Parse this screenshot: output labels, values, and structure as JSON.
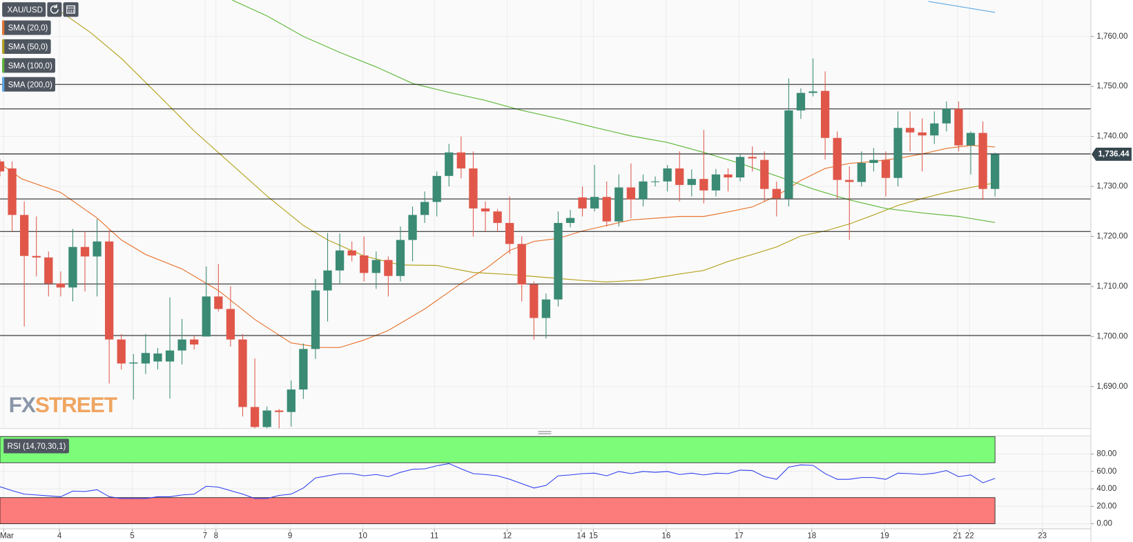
{
  "chart_data": [
    {
      "type": "candlestick",
      "name": "XAU/USD",
      "up_color": "#3a8a74",
      "down_color": "#e0574a",
      "open": [
        1735,
        1733.6,
        1724.3,
        1716.1,
        1715.8,
        1710.6,
        1709.8,
        1717.9,
        1716,
        1719,
        1699.4,
        1694.6,
        1694.6,
        1695,
        1695,
        1697.2,
        1699.4,
        1700,
        1708,
        1705.5,
        1699.4,
        1685.9,
        1681.9,
        1685.2,
        1684.9,
        1689.4,
        1697.5,
        1709.2,
        1713.2,
        1717.2,
        1716.2,
        1712.7,
        1715.3,
        1712.1,
        1719.3,
        1724.3,
        1726.9,
        1732.1,
        1736.8,
        1733.6,
        1725.6,
        1725,
        1722.7,
        1718.5,
        1710.4,
        1703.7,
        1707.4,
        1722.7,
        1727.8,
        1725.6,
        1727.9,
        1723,
        1729.8,
        1727.4,
        1731,
        1731,
        1733.6,
        1730.3,
        1731.5,
        1729.2,
        1732.4,
        1731.8,
        1735.9,
        1735.3,
        1729.5,
        1727.6,
        1745.2,
        1748.7,
        1749.1,
        1739.7,
        1731.3,
        1730.9,
        1734.7,
        1735.3,
        1731.7,
        1741.7,
        1740.8,
        1740.2,
        1742.6,
        1745.5,
        1738.2,
        1740.7,
        1729.5
      ],
      "high": [
        1735.5,
        1735,
        1727,
        1724,
        1717,
        1713,
        1721.5,
        1721,
        1723.5,
        1721.3,
        1700.5,
        1696.5,
        1700.5,
        1697.7,
        1707.8,
        1703.5,
        1700.2,
        1714,
        1714.5,
        1710,
        1700.5,
        1695.6,
        1686,
        1685.5,
        1691.2,
        1698.6,
        1711.5,
        1720.7,
        1720.6,
        1719,
        1720,
        1717,
        1716,
        1722,
        1726,
        1729,
        1733,
        1738.5,
        1740,
        1737,
        1727,
        1725.5,
        1728,
        1720,
        1711,
        1708.6,
        1725,
        1725.3,
        1730,
        1734.3,
        1731,
        1732.4,
        1734.6,
        1732.4,
        1732,
        1734.3,
        1737,
        1733.4,
        1741.3,
        1733.5,
        1733.6,
        1736.5,
        1738,
        1737,
        1731,
        1751.6,
        1749.6,
        1755.6,
        1753,
        1741,
        1734,
        1737,
        1737.7,
        1737,
        1745,
        1745,
        1743.6,
        1745,
        1747,
        1747,
        1741,
        1743,
        1736.8
      ],
      "low": [
        1732,
        1721,
        1702,
        1712,
        1708,
        1708,
        1707,
        1709,
        1708,
        1690.6,
        1693.4,
        1687.4,
        1692.5,
        1693.4,
        1687.6,
        1694.4,
        1697.4,
        1700,
        1705,
        1698,
        1684,
        1681.5,
        1681.5,
        1681.5,
        1682,
        1687.5,
        1695.5,
        1703,
        1710.6,
        1715,
        1711,
        1709.5,
        1708,
        1711,
        1715,
        1722.7,
        1724,
        1730,
        1731.6,
        1720,
        1721,
        1721,
        1716.5,
        1707,
        1699.4,
        1699.6,
        1706,
        1721.8,
        1724,
        1725,
        1722,
        1722,
        1723.6,
        1726,
        1730,
        1729,
        1727,
        1728,
        1726.6,
        1728,
        1729,
        1731,
        1733,
        1727,
        1724,
        1726,
        1743.5,
        1748,
        1735.4,
        1727.6,
        1719.3,
        1730,
        1733,
        1728,
        1730,
        1737,
        1733,
        1738.5,
        1741,
        1737,
        1732.4,
        1727.3,
        1728
      ],
      "close": [
        1733,
        1724.3,
        1716.1,
        1715.8,
        1710.6,
        1709.8,
        1717.9,
        1716,
        1719,
        1699.4,
        1694.6,
        1694.8,
        1696.7,
        1696.6,
        1697.2,
        1699.4,
        1698.4,
        1708,
        1705.5,
        1699.4,
        1685.9,
        1681.9,
        1685.2,
        1684.9,
        1689.4,
        1697.5,
        1709.2,
        1713.2,
        1717.2,
        1716.2,
        1712.7,
        1715.3,
        1712.1,
        1719.3,
        1724.3,
        1726.9,
        1732.1,
        1736.8,
        1733.6,
        1725.6,
        1725,
        1722.7,
        1718.5,
        1710.4,
        1703.7,
        1707.4,
        1722.7,
        1723.7,
        1725.6,
        1727.9,
        1723,
        1729.8,
        1727.4,
        1731,
        1731,
        1733.6,
        1730.3,
        1731.5,
        1729.2,
        1732.4,
        1731.8,
        1735.9,
        1735.6,
        1729.5,
        1727.6,
        1745.2,
        1748.7,
        1749,
        1739.7,
        1731.3,
        1730.9,
        1734.7,
        1735.3,
        1731.7,
        1741.7,
        1740.8,
        1740.2,
        1742.6,
        1745.5,
        1738.2,
        1740.7,
        1729.5,
        1736.44
      ],
      "overlays": [
        {
          "name": "SMA (20,0)",
          "color": "#e8742f",
          "x": [
            0,
            1.8,
            5,
            8,
            10,
            12,
            15,
            18,
            21,
            24,
            26.5,
            28,
            30,
            32,
            35,
            38,
            40,
            42,
            44,
            46,
            48,
            50,
            52,
            56,
            58,
            60,
            62,
            64,
            66,
            68,
            70,
            72,
            74,
            76,
            78,
            80,
            82
          ],
          "values": [
            1734.6,
            1731.5,
            1728.8,
            1723.7,
            1719.3,
            1716.4,
            1713.5,
            1709.2,
            1703.4,
            1698.7,
            1697.8,
            1697.8,
            1699.3,
            1701.2,
            1705.5,
            1710.6,
            1713.5,
            1717.2,
            1719,
            1719.6,
            1721.1,
            1722.2,
            1723.3,
            1724,
            1724,
            1724.9,
            1725.9,
            1728.1,
            1731.2,
            1733.6,
            1734.6,
            1735,
            1735.6,
            1736.5,
            1737.6,
            1738.2,
            1737.9
          ]
        },
        {
          "name": "SMA (50,0)",
          "color": "#b5a21e",
          "x": [
            4.5,
            7.5,
            10,
            13,
            16,
            19,
            22,
            25,
            27,
            30,
            33,
            36,
            39,
            42,
            45,
            48,
            50,
            53,
            56,
            58,
            60,
            62,
            64,
            66,
            68,
            70,
            72,
            74,
            76,
            78,
            80,
            82
          ],
          "values": [
            1765.8,
            1760.7,
            1755.6,
            1748.4,
            1741.1,
            1734.6,
            1728.1,
            1722.2,
            1719.3,
            1716.1,
            1714.3,
            1714.2,
            1712.8,
            1712.4,
            1711.8,
            1711.2,
            1710.9,
            1711.3,
            1712.5,
            1713.2,
            1715,
            1716.4,
            1717.9,
            1720.1,
            1721.1,
            1722.5,
            1724.3,
            1726.2,
            1727.6,
            1728.8,
            1729.8,
            1730.7
          ]
        },
        {
          "name": "SMA (100,0)",
          "color": "#5fb93a",
          "x": [
            19.1,
            22,
            25,
            28,
            31,
            34,
            37,
            40,
            43,
            46,
            49,
            52,
            55,
            58,
            61,
            64,
            67,
            70,
            73,
            76,
            79,
            82
          ],
          "values": [
            1767.3,
            1764.1,
            1760,
            1756.8,
            1753.9,
            1750.6,
            1748.8,
            1747.2,
            1745.2,
            1743.6,
            1741.8,
            1740.1,
            1738.8,
            1736.8,
            1734.6,
            1732.1,
            1729.5,
            1727.3,
            1725.6,
            1724.7,
            1724,
            1722.8
          ]
        },
        {
          "name": "SMA (200,0)",
          "color": "#5aa9e6",
          "x": [
            76.5,
            82
          ],
          "values": [
            1767,
            1764.8
          ]
        }
      ],
      "levels": [
        1750.4,
        1745.5,
        1736.5,
        1727.5,
        1721,
        1710.5,
        1700.2
      ],
      "last_price": {
        "value": 1736.44,
        "label": "1,736.44"
      },
      "xlim": [
        0,
        89.9
      ],
      "ylim": [
        1681.58,
        1767.26
      ],
      "yticks": [
        {
          "value": 1690,
          "label": "1,690.00"
        },
        {
          "value": 1700,
          "label": "1,700.00"
        },
        {
          "value": 1710,
          "label": "1,710.00"
        },
        {
          "value": 1720,
          "label": "1,720.00"
        },
        {
          "value": 1730,
          "label": "1,730.00"
        },
        {
          "value": 1740,
          "label": "1,740.00"
        },
        {
          "value": 1750,
          "label": "1,750.00"
        },
        {
          "value": 1760,
          "label": "1,760.00"
        }
      ],
      "grid": true
    },
    {
      "type": "line",
      "series": [
        {
          "name": "RSI (14,70,30,1)",
          "color": "#2a3cf0",
          "values": [
            42.5,
            38,
            34,
            33,
            32,
            31,
            37.5,
            37,
            39,
            31,
            29,
            29,
            29,
            31,
            31,
            33,
            34,
            43,
            42,
            38,
            34,
            29,
            29,
            32.5,
            34,
            41,
            52.5,
            55,
            57.5,
            57.5,
            55,
            56.5,
            54,
            59,
            62.5,
            63,
            66.5,
            69,
            63,
            57.5,
            56.5,
            55,
            51,
            46,
            41,
            44,
            55,
            56,
            57.5,
            58,
            55,
            60,
            57.5,
            60,
            59,
            60,
            56.5,
            58,
            56,
            58,
            57.5,
            61.5,
            61,
            54,
            51,
            65,
            67.5,
            67,
            57.5,
            51,
            51,
            53,
            53,
            51,
            58,
            57.5,
            56.5,
            58,
            61,
            54,
            56,
            47,
            52
          ]
        }
      ],
      "zones": [
        {
          "from": 70,
          "to": 100,
          "color": "#7dfc7a"
        },
        {
          "from": 0,
          "to": 30,
          "color": "#fc7b7b"
        }
      ],
      "xlim": [
        0,
        89.9
      ],
      "ylim": [
        -5.83,
        100.8
      ],
      "yticks": [
        {
          "value": 0,
          "label": "0.00"
        },
        {
          "value": 20,
          "label": "20.00"
        },
        {
          "value": 40,
          "label": "40.00"
        },
        {
          "value": 60,
          "label": "60.00"
        },
        {
          "value": 80,
          "label": "80.00"
        }
      ],
      "xticks": [
        {
          "value": 0.3,
          "label": "Mar"
        },
        {
          "value": 4.9,
          "label": "4"
        },
        {
          "value": 10.9,
          "label": "5"
        },
        {
          "value": 16.9,
          "label": "7"
        },
        {
          "value": 17.8,
          "label": "8"
        },
        {
          "value": 23.9,
          "label": "9"
        },
        {
          "value": 29.9,
          "label": "10"
        },
        {
          "value": 35.8,
          "label": "11"
        },
        {
          "value": 41.8,
          "label": "12"
        },
        {
          "value": 47.9,
          "label": "14"
        },
        {
          "value": 48.9,
          "label": "15"
        },
        {
          "value": 54.9,
          "label": "16"
        },
        {
          "value": 60.9,
          "label": "17"
        },
        {
          "value": 66.9,
          "label": "18"
        },
        {
          "value": 72.9,
          "label": "19"
        },
        {
          "value": 78.9,
          "label": "21"
        },
        {
          "value": 79.9,
          "label": "22"
        },
        {
          "value": 85.9,
          "label": "23"
        }
      ],
      "grid": true
    }
  ],
  "watermark": {
    "prefix": "FX",
    "suffix": "STREET"
  }
}
